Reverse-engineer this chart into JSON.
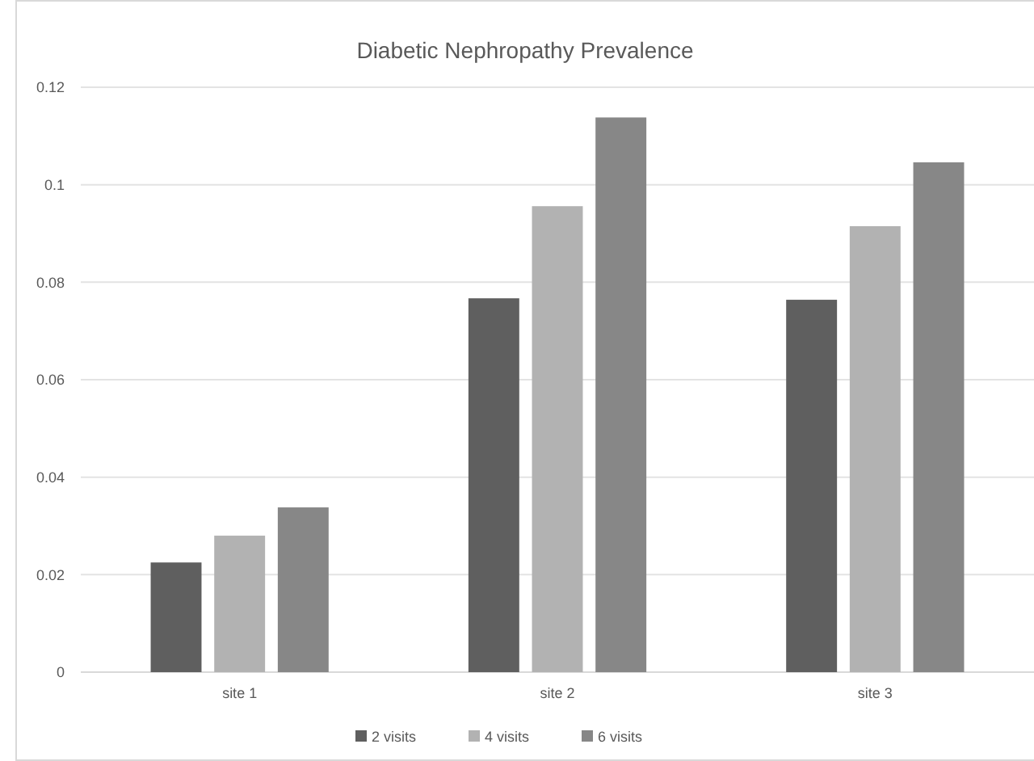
{
  "chart_data": {
    "type": "bar",
    "title": "Diabetic Nephropathy Prevalence",
    "categories": [
      "site 1",
      "site 2",
      "site 3"
    ],
    "series": [
      {
        "name": "2 visits",
        "color": "#5f5f5f",
        "values": [
          0.0225,
          0.0767,
          0.0764
        ]
      },
      {
        "name": "4 visits",
        "color": "#b2b2b2",
        "values": [
          0.028,
          0.0956,
          0.0915
        ]
      },
      {
        "name": "6 visits",
        "color": "#878787",
        "values": [
          0.0338,
          0.1138,
          0.1046
        ]
      }
    ],
    "ylim": [
      0,
      0.12
    ],
    "yticks": [
      0,
      0.02,
      0.04,
      0.06,
      0.08,
      0.1,
      0.12
    ],
    "grid": "y",
    "legend": "bottom"
  }
}
